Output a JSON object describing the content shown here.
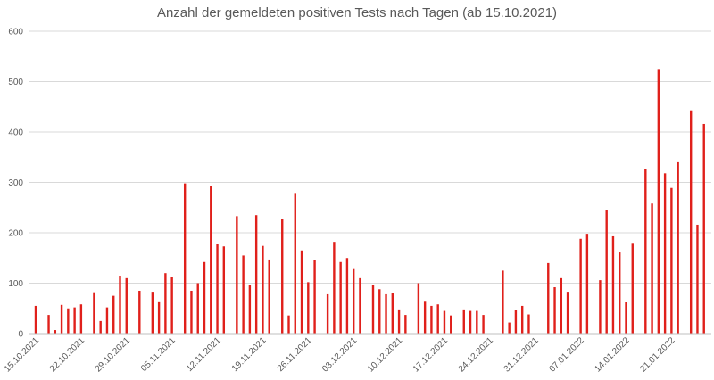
{
  "chart_data": {
    "type": "bar",
    "title": "Anzahl der gemeldeten positiven Tests nach Tagen (ab 15.10.2021)",
    "xlabel": "",
    "ylabel": "",
    "ylim": [
      0,
      600
    ],
    "yticks": [
      "0",
      "100",
      "200",
      "300",
      "400",
      "500",
      "600"
    ],
    "grid": true,
    "legend": "none",
    "bar_color": "#e0201b",
    "start_date": "15.10.2021",
    "x_tick_labels": [
      "15.10.2021",
      "22.10.2021",
      "29.10.2021",
      "05.11.2021",
      "12.11.2021",
      "19.11.2021",
      "26.11.2021",
      "03.12.2021",
      "10.12.2021",
      "17.12.2021",
      "24.12.2021",
      "31.12.2021",
      "07.01.2022",
      "14.01.2022",
      "21.01.2022"
    ],
    "values": [
      55,
      0,
      37,
      7,
      57,
      50,
      52,
      58,
      0,
      82,
      25,
      52,
      75,
      115,
      110,
      0,
      85,
      0,
      83,
      64,
      120,
      112,
      0,
      298,
      85,
      100,
      142,
      293,
      178,
      173,
      0,
      233,
      155,
      97,
      235,
      174,
      147,
      0,
      227,
      36,
      279,
      165,
      102,
      146,
      0,
      78,
      182,
      142,
      150,
      128,
      110,
      0,
      97,
      88,
      78,
      80,
      48,
      37,
      0,
      100,
      65,
      55,
      58,
      45,
      36,
      0,
      48,
      45,
      45,
      37,
      0,
      0,
      125,
      22,
      47,
      55,
      38,
      0,
      0,
      140,
      92,
      110,
      83,
      0,
      188,
      198,
      0,
      106,
      246,
      193,
      161,
      62,
      180,
      0,
      326,
      258,
      525,
      318,
      289,
      340,
      0,
      443,
      216,
      416
    ]
  }
}
